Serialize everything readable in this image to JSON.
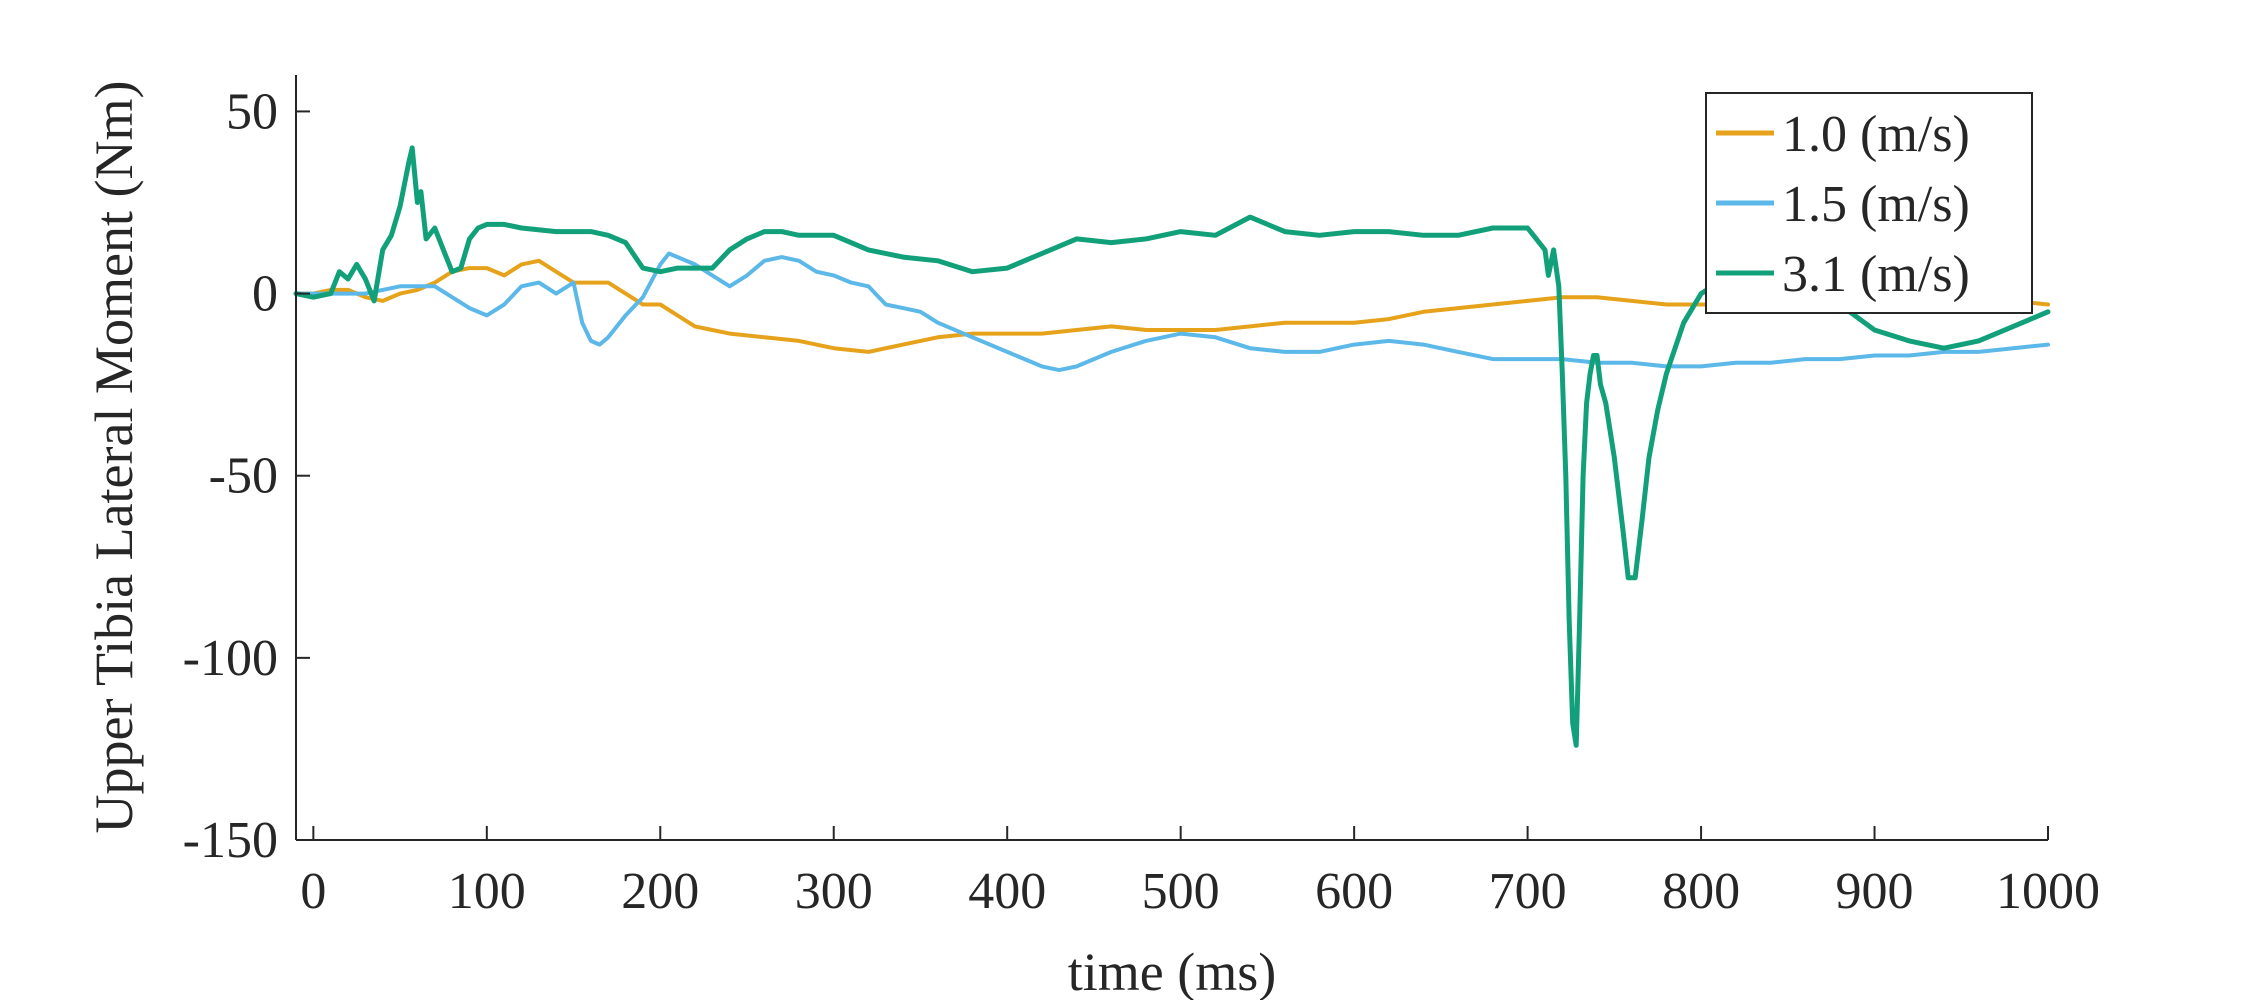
{
  "chart_data": {
    "type": "line",
    "title": "",
    "xlabel": "time (ms)",
    "ylabel": "Upper Tibia Lateral Moment (Nm)",
    "xlim": [
      -10,
      1000
    ],
    "ylim": [
      -150,
      60
    ],
    "xticks": [
      0,
      100,
      200,
      300,
      400,
      500,
      600,
      700,
      800,
      900,
      1000
    ],
    "yticks": [
      50,
      0,
      -50,
      -100,
      -150
    ],
    "xtick_labels": [
      "0",
      "100",
      "200",
      "300",
      "400",
      "500",
      "600",
      "700",
      "800",
      "900",
      "1000"
    ],
    "ytick_labels": [
      "50",
      "0",
      "-50",
      "-100",
      "-150"
    ],
    "grid": false,
    "legend_position": "top-right",
    "series": [
      {
        "name": "1.0 (m/s)",
        "color": "#E6A21A",
        "x": [
          -10,
          0,
          10,
          20,
          30,
          40,
          50,
          60,
          70,
          80,
          90,
          100,
          110,
          120,
          130,
          140,
          150,
          160,
          170,
          180,
          190,
          200,
          210,
          220,
          230,
          240,
          260,
          280,
          300,
          320,
          340,
          360,
          380,
          400,
          420,
          440,
          460,
          480,
          500,
          520,
          540,
          560,
          580,
          600,
          620,
          640,
          660,
          680,
          700,
          720,
          740,
          760,
          780,
          800,
          820,
          840,
          860,
          880,
          900,
          920,
          940,
          960,
          980,
          1000
        ],
        "values": [
          0,
          0,
          1,
          1,
          -1,
          -2,
          0,
          1,
          3,
          6,
          7,
          7,
          5,
          8,
          9,
          6,
          3,
          3,
          3,
          0,
          -3,
          -3,
          -6,
          -9,
          -10,
          -11,
          -12,
          -13,
          -15,
          -16,
          -14,
          -12,
          -11,
          -11,
          -11,
          -10,
          -9,
          -10,
          -10,
          -10,
          -9,
          -8,
          -8,
          -8,
          -7,
          -5,
          -4,
          -3,
          -2,
          -1,
          -1,
          -2,
          -3,
          -3,
          -3,
          -3,
          -3,
          -3,
          -3,
          -3,
          -3,
          -2,
          -2,
          -3
        ]
      },
      {
        "name": "1.5 (m/s)",
        "color": "#5BB8E8",
        "x": [
          -10,
          0,
          10,
          20,
          30,
          40,
          50,
          60,
          70,
          80,
          90,
          100,
          110,
          120,
          130,
          140,
          150,
          155,
          160,
          165,
          170,
          180,
          190,
          200,
          205,
          210,
          220,
          230,
          240,
          250,
          260,
          270,
          280,
          290,
          300,
          310,
          320,
          330,
          340,
          350,
          360,
          380,
          400,
          420,
          430,
          440,
          460,
          480,
          500,
          520,
          540,
          560,
          580,
          600,
          620,
          640,
          660,
          680,
          700,
          720,
          740,
          760,
          780,
          800,
          820,
          840,
          860,
          880,
          900,
          920,
          940,
          960,
          980,
          1000
        ],
        "values": [
          0,
          0,
          0,
          0,
          0,
          1,
          2,
          2,
          2,
          -1,
          -4,
          -6,
          -3,
          2,
          3,
          0,
          3,
          -8,
          -13,
          -14,
          -12,
          -6,
          -1,
          8,
          11,
          10,
          8,
          5,
          2,
          5,
          9,
          10,
          9,
          6,
          5,
          3,
          2,
          -3,
          -4,
          -5,
          -8,
          -12,
          -16,
          -20,
          -21,
          -20,
          -16,
          -13,
          -11,
          -12,
          -15,
          -16,
          -16,
          -14,
          -13,
          -14,
          -16,
          -18,
          -18,
          -18,
          -19,
          -19,
          -20,
          -20,
          -19,
          -19,
          -18,
          -18,
          -17,
          -17,
          -16,
          -16,
          -15,
          -14
        ]
      },
      {
        "name": "3.1 (m/s)",
        "color": "#12A07A",
        "x": [
          -10,
          0,
          10,
          15,
          20,
          25,
          30,
          35,
          40,
          45,
          50,
          55,
          57,
          60,
          62,
          65,
          70,
          75,
          80,
          85,
          90,
          95,
          100,
          110,
          120,
          140,
          160,
          170,
          180,
          190,
          200,
          210,
          220,
          230,
          240,
          250,
          260,
          270,
          280,
          300,
          320,
          340,
          360,
          380,
          400,
          420,
          440,
          460,
          480,
          500,
          520,
          540,
          560,
          580,
          600,
          620,
          640,
          660,
          680,
          700,
          710,
          712,
          715,
          718,
          720,
          722,
          724,
          726,
          728,
          730,
          732,
          734,
          736,
          738,
          740,
          742,
          745,
          750,
          755,
          758,
          762,
          766,
          770,
          775,
          780,
          790,
          800,
          810,
          820,
          840,
          860,
          880,
          900,
          920,
          940,
          960,
          980,
          1000
        ],
        "values": [
          0,
          -1,
          0,
          6,
          4,
          8,
          4,
          -2,
          12,
          16,
          24,
          36,
          40,
          25,
          28,
          15,
          18,
          12,
          6,
          7,
          15,
          18,
          19,
          19,
          18,
          17,
          17,
          16,
          14,
          7,
          6,
          7,
          7,
          7,
          12,
          15,
          17,
          17,
          16,
          16,
          12,
          10,
          9,
          6,
          7,
          11,
          15,
          14,
          15,
          17,
          16,
          21,
          17,
          16,
          17,
          17,
          16,
          16,
          18,
          18,
          12,
          5,
          12,
          2,
          -22,
          -50,
          -90,
          -118,
          -124,
          -90,
          -50,
          -30,
          -22,
          -17,
          -17,
          -25,
          -30,
          -45,
          -65,
          -78,
          -78,
          -62,
          -45,
          -32,
          -22,
          -8,
          0,
          3,
          4,
          4,
          4,
          -3,
          -10,
          -13,
          -15,
          -13,
          -9,
          -5
        ]
      }
    ]
  }
}
